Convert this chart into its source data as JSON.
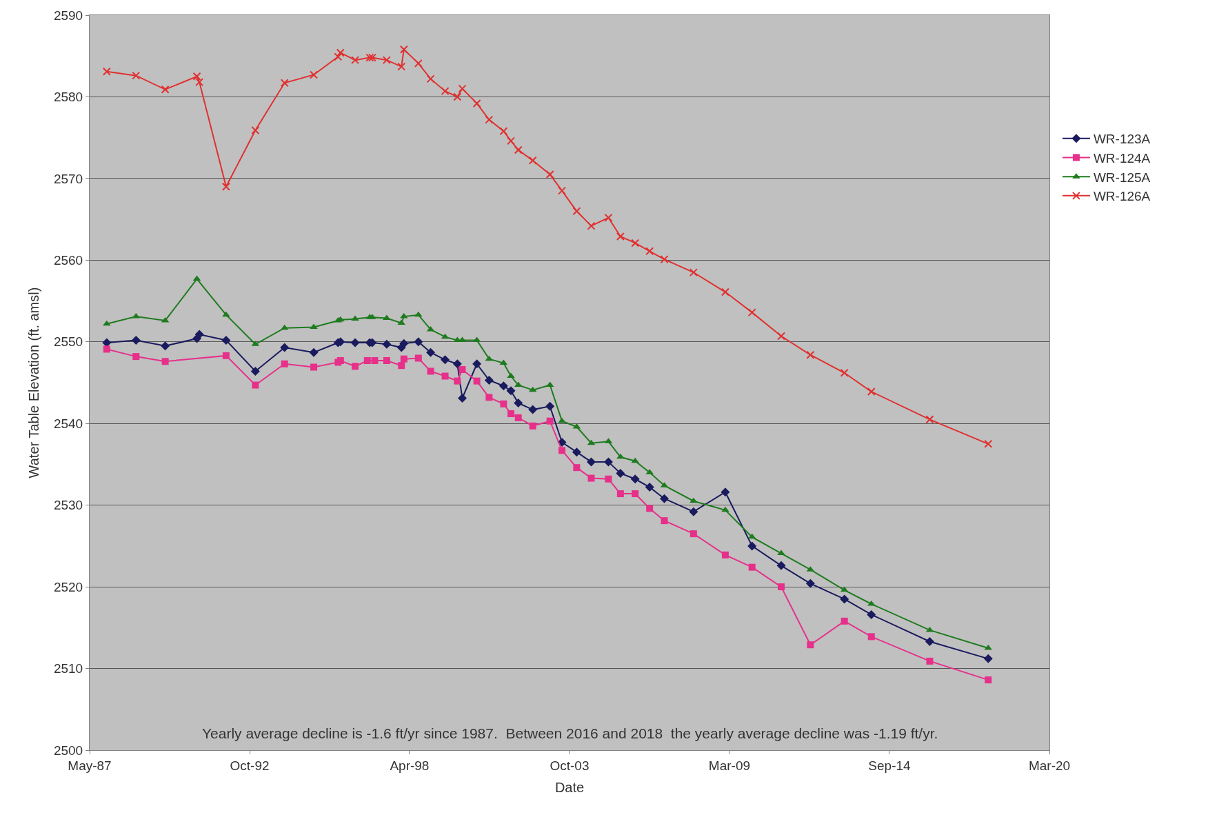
{
  "chart_data": {
    "type": "line",
    "xlabel": "Date",
    "ylabel": "Water Table Elevation (ft. amsl)",
    "xlim": [
      "1987-05-01",
      "2020-03-07"
    ],
    "xticks": [
      {
        "value": "1987-05-01",
        "label": "May-87"
      },
      {
        "value": "1992-10-21",
        "label": "Oct-92"
      },
      {
        "value": "1998-04-12",
        "label": "Apr-98"
      },
      {
        "value": "2003-10-03",
        "label": "Oct-03"
      },
      {
        "value": "2009-03-25",
        "label": "Mar-09"
      },
      {
        "value": "2014-09-15",
        "label": "Sep-14"
      },
      {
        "value": "2020-03-07",
        "label": "Mar-20"
      }
    ],
    "ylim": [
      2500,
      2590
    ],
    "yticks": [
      2500,
      2510,
      2520,
      2530,
      2540,
      2550,
      2560,
      2570,
      2580,
      2590
    ],
    "grid": "y",
    "legend": "right",
    "line_style": "solid",
    "annotations": [
      "Yearly average decline is -1.6 ft/yr since 1987.  Between 2016 and 2018  the yearly average decline was -1.19 ft/yr."
    ],
    "series": [
      {
        "name": "WR-123A",
        "color": "#1a1a5e",
        "marker": "diamond",
        "x": [
          "1987-12",
          "1988-12",
          "1989-12",
          "1991-01",
          "1991-02",
          "1992-01",
          "1993-01",
          "1994-01",
          "1995-01",
          "1995-11",
          "1995-12",
          "1996-06",
          "1996-12",
          "1997-01",
          "1997-07",
          "1998-01",
          "1998-02",
          "1998-08",
          "1999-01",
          "1999-07",
          "1999-12",
          "2000-02",
          "2000-08",
          "2001-01",
          "2001-07",
          "2001-10",
          "2002-01",
          "2002-07",
          "2003-02",
          "2003-07",
          "2004-01",
          "2004-07",
          "2005-02",
          "2005-07",
          "2006-01",
          "2006-07",
          "2007-01",
          "2008-01",
          "2009-02",
          "2010-01",
          "2011-01",
          "2012-01",
          "2013-03",
          "2014-02",
          "2016-02",
          "2018-02"
        ],
        "values": [
          2549.9,
          2550.2,
          2549.5,
          2550.4,
          2550.9,
          2550.2,
          2546.4,
          2549.3,
          2548.7,
          2549.9,
          2550.0,
          2549.9,
          2549.9,
          2549.9,
          2549.7,
          2549.3,
          2549.8,
          2550.0,
          2548.7,
          2547.8,
          2547.3,
          2543.1,
          2547.3,
          2545.3,
          2544.6,
          2544.0,
          2542.5,
          2541.7,
          2542.1,
          2537.7,
          2536.5,
          2535.3,
          2535.3,
          2533.9,
          2533.2,
          2532.2,
          2530.8,
          2529.2,
          2531.6,
          2525.0,
          2522.6,
          2520.4,
          2518.5,
          2516.6,
          2513.3,
          2511.2
        ]
      },
      {
        "name": "WR-124A",
        "color": "#e6308a",
        "marker": "square",
        "x": [
          "1987-12",
          "1988-12",
          "1989-12",
          "1992-01",
          "1993-01",
          "1994-01",
          "1995-01",
          "1995-11",
          "1995-12",
          "1996-06",
          "1996-11",
          "1997-02",
          "1997-07",
          "1998-01",
          "1998-02",
          "1998-08",
          "1999-01",
          "1999-07",
          "1999-12",
          "2000-02",
          "2000-08",
          "2001-01",
          "2001-07",
          "2001-10",
          "2002-01",
          "2002-07",
          "2003-02",
          "2003-07",
          "2004-01",
          "2004-07",
          "2005-02",
          "2005-07",
          "2006-01",
          "2006-07",
          "2007-01",
          "2008-01",
          "2009-02",
          "2010-01",
          "2011-01",
          "2012-01",
          "2013-03",
          "2014-02",
          "2016-02",
          "2018-02"
        ],
        "values": [
          2549.1,
          2548.2,
          2547.6,
          2548.3,
          2544.7,
          2547.3,
          2546.9,
          2547.5,
          2547.7,
          2547.0,
          2547.7,
          2547.7,
          2547.7,
          2547.1,
          2547.9,
          2548.0,
          2546.4,
          2545.8,
          2545.2,
          2546.6,
          2545.2,
          2543.2,
          2542.4,
          2541.2,
          2540.7,
          2539.7,
          2540.3,
          2536.7,
          2534.6,
          2533.3,
          2533.2,
          2531.4,
          2531.4,
          2529.6,
          2528.1,
          2526.5,
          2523.9,
          2522.4,
          2520.0,
          2512.9,
          2515.8,
          2513.9,
          2510.9,
          2508.6
        ]
      },
      {
        "name": "WR-125A",
        "color": "#1e7b1e",
        "marker": "triangle",
        "x": [
          "1987-12",
          "1988-12",
          "1989-12",
          "1991-01",
          "1992-01",
          "1993-01",
          "1994-01",
          "1995-01",
          "1995-11",
          "1995-12",
          "1996-06",
          "1996-12",
          "1997-01",
          "1997-07",
          "1998-01",
          "1998-02",
          "1998-08",
          "1999-01",
          "1999-07",
          "1999-12",
          "2000-02",
          "2000-08",
          "2001-01",
          "2001-07",
          "2001-10",
          "2002-01",
          "2002-07",
          "2003-02",
          "2003-07",
          "2004-01",
          "2004-07",
          "2005-02",
          "2005-07",
          "2006-01",
          "2006-07",
          "2007-01",
          "2008-01",
          "2009-02",
          "2010-01",
          "2011-01",
          "2012-01",
          "2013-03",
          "2014-02",
          "2016-02",
          "2018-02"
        ],
        "values": [
          2552.2,
          2553.1,
          2552.6,
          2557.7,
          2553.3,
          2549.7,
          2551.7,
          2551.8,
          2552.6,
          2552.7,
          2552.8,
          2553.0,
          2553.0,
          2552.9,
          2552.3,
          2553.1,
          2553.3,
          2551.5,
          2550.6,
          2550.2,
          2550.2,
          2550.2,
          2547.9,
          2547.4,
          2545.8,
          2544.7,
          2544.1,
          2544.7,
          2540.3,
          2539.6,
          2537.6,
          2537.8,
          2535.9,
          2535.4,
          2534.0,
          2532.4,
          2530.5,
          2529.4,
          2526.1,
          2524.1,
          2522.1,
          2519.6,
          2517.9,
          2514.7,
          2512.5
        ]
      },
      {
        "name": "WR-126A",
        "color": "#e03030",
        "marker": "cross",
        "x": [
          "1987-12",
          "1988-12",
          "1989-12",
          "1991-01",
          "1991-02",
          "1992-01",
          "1993-01",
          "1994-01",
          "1995-01",
          "1995-11",
          "1995-12",
          "1996-06",
          "1996-12",
          "1997-01",
          "1997-07",
          "1998-01",
          "1998-02",
          "1998-08",
          "1999-01",
          "1999-07",
          "1999-12",
          "2000-02",
          "2000-08",
          "2001-01",
          "2001-07",
          "2001-10",
          "2002-01",
          "2002-07",
          "2003-02",
          "2003-07",
          "2004-01",
          "2004-07",
          "2005-02",
          "2005-07",
          "2006-01",
          "2006-07",
          "2007-01",
          "2008-01",
          "2009-02",
          "2010-01",
          "2011-01",
          "2012-01",
          "2013-03",
          "2014-02",
          "2016-02",
          "2018-02"
        ],
        "values": [
          2583.1,
          2582.6,
          2580.9,
          2582.5,
          2581.8,
          2569.0,
          2575.9,
          2581.7,
          2582.7,
          2584.9,
          2585.4,
          2584.5,
          2584.8,
          2584.8,
          2584.5,
          2583.7,
          2585.8,
          2584.1,
          2582.2,
          2580.7,
          2580.0,
          2581.0,
          2579.2,
          2577.2,
          2575.8,
          2574.6,
          2573.5,
          2572.2,
          2570.5,
          2568.5,
          2566.0,
          2564.2,
          2565.2,
          2562.9,
          2562.1,
          2561.1,
          2560.1,
          2558.5,
          2556.1,
          2553.6,
          2550.7,
          2548.4,
          2546.2,
          2543.9,
          2540.5,
          2537.5
        ]
      }
    ]
  }
}
